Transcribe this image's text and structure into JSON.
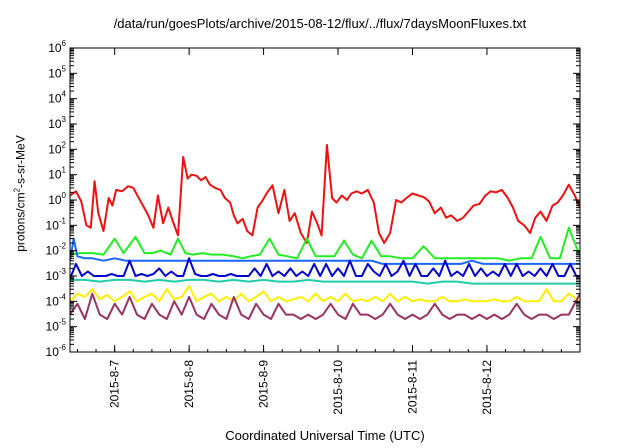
{
  "title": "/data/run/goesPlots/archive/2015-08-12/flux/../flux/7daysMoonFluxes.txt",
  "xlabel": "Coordinated Universal Time (UTC)",
  "ylabel": {
    "pre": "protons/cm",
    "sup": "2",
    "post": "-s-sr-MeV"
  },
  "chart_data": {
    "type": "line",
    "title": "/data/run/goesPlots/archive/2015-08-12/flux/../flux/7daysMoonFluxes.txt",
    "xlabel": "Coordinated Universal Time (UTC)",
    "ylabel": "protons/cm2-s-sr-MeV",
    "y_scale": "log",
    "ylim": [
      1e-06,
      1000000.0
    ],
    "xlim_days": [
      0,
      6.85
    ],
    "x_ticks": [
      {
        "day": 0.6,
        "label": "2015-8-7"
      },
      {
        "day": 1.6,
        "label": "2015-8-8"
      },
      {
        "day": 2.6,
        "label": "2015-8-9"
      },
      {
        "day": 3.6,
        "label": "2015-8-10"
      },
      {
        "day": 4.6,
        "label": "2015-8-11"
      },
      {
        "day": 5.6,
        "label": "2015-8-12"
      }
    ],
    "y_ticks": [
      -6,
      -5,
      -4,
      -3,
      -2,
      -1,
      0,
      1,
      2,
      3,
      4,
      5,
      6
    ],
    "grid": false,
    "legend": "none",
    "series": [
      {
        "color": "#ee1111",
        "x": [
          0,
          0.08,
          0.15,
          0.22,
          0.28,
          0.33,
          0.38,
          0.45,
          0.52,
          0.57,
          0.62,
          0.7,
          0.78,
          0.85,
          0.9,
          0.98,
          1.05,
          1.12,
          1.18,
          1.25,
          1.32,
          1.38,
          1.45,
          1.52,
          1.58,
          1.63,
          1.7,
          1.76,
          1.82,
          1.88,
          1.95,
          2.02,
          2.08,
          2.15,
          2.2,
          2.25,
          2.32,
          2.38,
          2.45,
          2.52,
          2.58,
          2.65,
          2.72,
          2.8,
          2.88,
          2.95,
          3.02,
          3.1,
          3.18,
          3.25,
          3.32,
          3.38,
          3.45,
          3.52,
          3.58,
          3.65,
          3.72,
          3.78,
          3.85,
          3.92,
          4.0,
          4.08,
          4.15,
          4.22,
          4.3,
          4.38,
          4.45,
          4.52,
          4.6,
          4.68,
          4.75,
          4.82,
          4.9,
          4.98,
          5.05,
          5.12,
          5.2,
          5.28,
          5.35,
          5.42,
          5.5,
          5.58,
          5.65,
          5.72,
          5.8,
          5.88,
          5.95,
          6.02,
          6.1,
          6.18,
          6.25,
          6.32,
          6.4,
          6.48,
          6.55,
          6.62,
          6.7,
          6.78,
          6.85
        ],
        "values": [
          1.5,
          2.2,
          0.9,
          0.1,
          0.08,
          5.5,
          0.3,
          0.06,
          1.2,
          0.6,
          2.5,
          2.2,
          3.5,
          3.0,
          1.6,
          0.6,
          0.25,
          0.08,
          1.5,
          0.12,
          0.5,
          0.15,
          0.04,
          50,
          7,
          10,
          9,
          6,
          8,
          4,
          3,
          2.5,
          1.2,
          0.8,
          0.25,
          0.12,
          0.18,
          0.06,
          0.04,
          0.5,
          0.9,
          2,
          3.8,
          0.3,
          2.5,
          0.15,
          0.3,
          0.05,
          0.02,
          0.35,
          0.12,
          0.04,
          150,
          1.2,
          0.8,
          1.5,
          1.0,
          1.8,
          2.2,
          1.8,
          2.5,
          0.8,
          0.05,
          0.02,
          0.05,
          1.0,
          0.8,
          1.2,
          1.8,
          1.5,
          1.3,
          0.9,
          0.3,
          0.5,
          0.2,
          0.25,
          0.15,
          0.2,
          0.35,
          0.6,
          0.7,
          1.5,
          2.2,
          2.0,
          2.5,
          1.2,
          0.5,
          0.15,
          0.1,
          0.05,
          0.2,
          0.35,
          0.15,
          0.6,
          0.8,
          1.5,
          4,
          1.5,
          0.5
        ]
      },
      {
        "color": "#22ee22",
        "x": [
          0,
          0.15,
          0.3,
          0.45,
          0.6,
          0.72,
          0.88,
          1.0,
          1.1,
          1.22,
          1.35,
          1.45,
          1.55,
          1.65,
          1.78,
          1.9,
          2.05,
          2.2,
          2.32,
          2.42,
          2.55,
          2.68,
          2.8,
          2.92,
          3.05,
          3.18,
          3.3,
          3.42,
          3.55,
          3.68,
          3.8,
          3.92,
          4.05,
          4.18,
          4.3,
          4.45,
          4.6,
          4.75,
          4.9,
          5.05,
          5.2,
          5.35,
          5.5,
          5.62,
          5.75,
          5.9,
          6.05,
          6.2,
          6.32,
          6.45,
          6.58,
          6.7,
          6.85
        ],
        "values": [
          0.007,
          0.008,
          0.008,
          0.007,
          0.03,
          0.008,
          0.035,
          0.008,
          0.008,
          0.01,
          0.007,
          0.03,
          0.008,
          0.007,
          0.008,
          0.007,
          0.007,
          0.006,
          0.005,
          0.006,
          0.007,
          0.03,
          0.007,
          0.006,
          0.005,
          0.03,
          0.006,
          0.006,
          0.006,
          0.025,
          0.007,
          0.005,
          0.025,
          0.006,
          0.006,
          0.005,
          0.005,
          0.015,
          0.005,
          0.005,
          0.005,
          0.005,
          0.005,
          0.005,
          0.005,
          0.004,
          0.005,
          0.005,
          0.035,
          0.005,
          0.005,
          0.08,
          0.006
        ]
      },
      {
        "color": "#1a66ff",
        "x": [
          0,
          0.05,
          0.1,
          0.2,
          0.3,
          0.45,
          0.6,
          0.75,
          0.9,
          1.05,
          1.2,
          1.35,
          1.5,
          1.65,
          1.8,
          1.95,
          2.1,
          2.25,
          2.4,
          2.55,
          2.7,
          2.85,
          3.0,
          3.15,
          3.3,
          3.45,
          3.6,
          3.75,
          3.9,
          4.05,
          4.2,
          4.35,
          4.5,
          4.65,
          4.8,
          4.95,
          5.1,
          5.25,
          5.4,
          5.55,
          5.7,
          5.85,
          6.0,
          6.15,
          6.3,
          6.45,
          6.6,
          6.75,
          6.85
        ],
        "values": [
          0.004,
          0.03,
          0.006,
          0.005,
          0.005,
          0.004,
          0.005,
          0.004,
          0.004,
          0.004,
          0.004,
          0.004,
          0.004,
          0.004,
          0.004,
          0.004,
          0.004,
          0.004,
          0.004,
          0.004,
          0.004,
          0.004,
          0.004,
          0.004,
          0.004,
          0.004,
          0.004,
          0.004,
          0.004,
          0.004,
          0.003,
          0.003,
          0.003,
          0.003,
          0.003,
          0.003,
          0.003,
          0.003,
          0.004,
          0.003,
          0.003,
          0.003,
          0.003,
          0.003,
          0.003,
          0.003,
          0.003,
          0.003,
          0.003
        ]
      },
      {
        "color": "#0000cc",
        "x": [
          0,
          0.08,
          0.16,
          0.24,
          0.32,
          0.4,
          0.48,
          0.56,
          0.64,
          0.72,
          0.8,
          0.88,
          0.96,
          1.04,
          1.12,
          1.2,
          1.28,
          1.36,
          1.44,
          1.52,
          1.6,
          1.68,
          1.76,
          1.84,
          1.92,
          2.0,
          2.08,
          2.16,
          2.24,
          2.32,
          2.4,
          2.48,
          2.56,
          2.64,
          2.72,
          2.8,
          2.88,
          2.96,
          3.04,
          3.12,
          3.2,
          3.28,
          3.36,
          3.44,
          3.52,
          3.6,
          3.68,
          3.76,
          3.84,
          3.92,
          4.0,
          4.08,
          4.16,
          4.24,
          4.32,
          4.4,
          4.48,
          4.56,
          4.64,
          4.72,
          4.8,
          4.88,
          4.96,
          5.04,
          5.12,
          5.2,
          5.28,
          5.36,
          5.44,
          5.52,
          5.6,
          5.68,
          5.76,
          5.84,
          5.92,
          6.0,
          6.08,
          6.16,
          6.24,
          6.32,
          6.4,
          6.48,
          6.56,
          6.64,
          6.72,
          6.8,
          6.85
        ],
        "values": [
          0.0008,
          0.003,
          0.001,
          0.0015,
          0.001,
          0.001,
          0.001,
          0.0012,
          0.001,
          0.001,
          0.004,
          0.001,
          0.0012,
          0.001,
          0.0012,
          0.002,
          0.001,
          0.0015,
          0.001,
          0.001,
          0.005,
          0.0012,
          0.001,
          0.001,
          0.0012,
          0.001,
          0.001,
          0.0012,
          0.001,
          0.001,
          0.001,
          0.002,
          0.001,
          0.003,
          0.001,
          0.0015,
          0.001,
          0.002,
          0.001,
          0.0015,
          0.001,
          0.003,
          0.001,
          0.003,
          0.001,
          0.002,
          0.001,
          0.004,
          0.001,
          0.001,
          0.003,
          0.0015,
          0.001,
          0.003,
          0.001,
          0.0015,
          0.004,
          0.001,
          0.003,
          0.001,
          0.001,
          0.002,
          0.001,
          0.004,
          0.001,
          0.0015,
          0.001,
          0.003,
          0.001,
          0.002,
          0.001,
          0.0015,
          0.001,
          0.003,
          0.001,
          0.003,
          0.001,
          0.0015,
          0.001,
          0.002,
          0.001,
          0.003,
          0.001,
          0.001,
          0.003,
          0.001,
          0.001
        ]
      },
      {
        "color": "#22ccaa",
        "x": [
          0,
          0.2,
          0.4,
          0.6,
          0.8,
          1.0,
          1.2,
          1.4,
          1.6,
          1.8,
          2.0,
          2.2,
          2.4,
          2.6,
          2.8,
          3.0,
          3.2,
          3.4,
          3.6,
          3.8,
          4.0,
          4.2,
          4.4,
          4.6,
          4.8,
          5.0,
          5.2,
          5.4,
          5.6,
          5.8,
          6.0,
          6.2,
          6.4,
          6.6,
          6.85
        ],
        "values": [
          0.0007,
          0.0007,
          0.0006,
          0.0007,
          0.0007,
          0.0006,
          0.0007,
          0.0006,
          0.0007,
          0.0007,
          0.0006,
          0.0007,
          0.0006,
          0.0007,
          0.0006,
          0.0006,
          0.0007,
          0.0006,
          0.0006,
          0.0006,
          0.0006,
          0.0006,
          0.0006,
          0.0006,
          0.0005,
          0.0006,
          0.0006,
          0.0005,
          0.0005,
          0.0005,
          0.0005,
          0.0005,
          0.0005,
          0.0005,
          0.0005
        ]
      },
      {
        "color": "#ffee00",
        "x": [
          0,
          0.1,
          0.2,
          0.3,
          0.4,
          0.5,
          0.6,
          0.7,
          0.8,
          0.9,
          1.0,
          1.1,
          1.2,
          1.3,
          1.4,
          1.5,
          1.6,
          1.7,
          1.8,
          1.9,
          2.0,
          2.1,
          2.2,
          2.3,
          2.4,
          2.5,
          2.6,
          2.7,
          2.8,
          2.9,
          3.0,
          3.1,
          3.2,
          3.3,
          3.4,
          3.5,
          3.6,
          3.7,
          3.8,
          3.9,
          4.0,
          4.1,
          4.2,
          4.3,
          4.4,
          4.5,
          4.6,
          4.7,
          4.8,
          4.9,
          5.0,
          5.1,
          5.2,
          5.3,
          5.4,
          5.5,
          5.6,
          5.7,
          5.8,
          5.9,
          6.0,
          6.1,
          6.2,
          6.3,
          6.4,
          6.5,
          6.6,
          6.7,
          6.85
        ],
        "values": [
          0.0001,
          0.0002,
          0.00015,
          0.0003,
          0.00012,
          0.00018,
          0.0001,
          0.00015,
          0.00025,
          0.0001,
          0.00015,
          0.0002,
          0.0001,
          0.0003,
          0.00012,
          0.00015,
          0.0004,
          0.0001,
          0.00015,
          0.0002,
          0.0001,
          0.00015,
          0.0001,
          0.0002,
          0.0001,
          0.00015,
          0.00025,
          0.0001,
          0.00015,
          0.0001,
          0.00012,
          0.00015,
          0.0001,
          0.0002,
          0.0001,
          0.00015,
          0.0001,
          0.0002,
          0.0001,
          0.00012,
          0.0001,
          0.00015,
          0.0001,
          0.0002,
          0.0001,
          0.00015,
          0.0001,
          0.00012,
          0.0001,
          0.0001,
          0.00015,
          0.0001,
          0.0001,
          0.00012,
          0.0001,
          0.0001,
          0.0001,
          0.00012,
          0.0001,
          0.0001,
          0.00015,
          0.0001,
          0.0001,
          0.0001,
          0.0003,
          0.0001,
          0.0001,
          0.0002,
          0.0001
        ]
      },
      {
        "color": "#993366",
        "x": [
          0,
          0.1,
          0.2,
          0.3,
          0.4,
          0.5,
          0.6,
          0.7,
          0.8,
          0.9,
          1.0,
          1.1,
          1.2,
          1.3,
          1.4,
          1.5,
          1.6,
          1.7,
          1.8,
          1.9,
          2.0,
          2.1,
          2.2,
          2.3,
          2.4,
          2.5,
          2.6,
          2.7,
          2.8,
          2.9,
          3.0,
          3.1,
          3.2,
          3.3,
          3.4,
          3.5,
          3.6,
          3.7,
          3.8,
          3.9,
          4.0,
          4.1,
          4.2,
          4.3,
          4.4,
          4.5,
          4.6,
          4.7,
          4.8,
          4.9,
          5.0,
          5.1,
          5.2,
          5.3,
          5.4,
          5.5,
          5.6,
          5.7,
          5.8,
          5.9,
          6.0,
          6.1,
          6.2,
          6.3,
          6.4,
          6.5,
          6.6,
          6.7,
          6.85
        ],
        "values": [
          3e-05,
          8e-05,
          2e-05,
          0.0002,
          3e-05,
          2e-05,
          8e-05,
          3e-05,
          0.00015,
          3e-05,
          2e-05,
          8e-05,
          3e-05,
          2e-05,
          0.0001,
          3e-05,
          0.00015,
          3e-05,
          2e-05,
          8e-05,
          3e-05,
          2e-05,
          0.00015,
          3e-05,
          2e-05,
          8e-05,
          3e-05,
          2e-05,
          8e-05,
          3e-05,
          3e-05,
          2e-05,
          3e-05,
          2e-05,
          3e-05,
          8e-05,
          3e-05,
          2e-05,
          8e-05,
          3e-05,
          3e-05,
          2e-05,
          3e-05,
          8e-05,
          3e-05,
          2e-05,
          3e-05,
          2e-05,
          3e-05,
          8e-05,
          3e-05,
          2e-05,
          3e-05,
          3e-05,
          2e-05,
          3e-05,
          2e-05,
          3e-05,
          2e-05,
          3e-05,
          8e-05,
          3e-05,
          2e-05,
          3e-05,
          3e-05,
          2e-05,
          3e-05,
          3e-05,
          0.0002
        ]
      }
    ]
  }
}
